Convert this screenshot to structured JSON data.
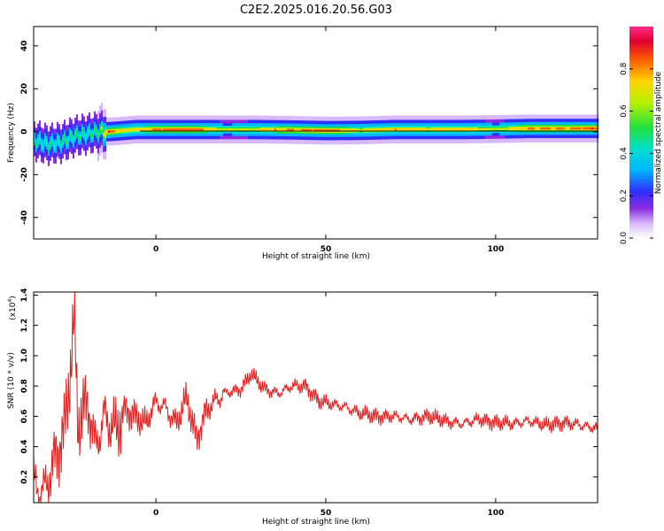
{
  "title": "C2E2.2025.016.20.56.G03",
  "colors": {
    "line": "#e32020",
    "colormap": [
      "#ffffff",
      "#d8b8ff",
      "#8a2be2",
      "#2f2fff",
      "#00c8ff",
      "#00e0a0",
      "#20e040",
      "#ffd400",
      "#ff6000",
      "#e00030",
      "#ff2a8a"
    ]
  },
  "chart_data": [
    {
      "type": "heatmap",
      "xlabel": "Height of straight line (km)",
      "ylabel": "Frequency (Hz)",
      "xlim": [
        -36,
        130
      ],
      "ylim": [
        -50,
        49
      ],
      "xticks": [
        0,
        50,
        100
      ],
      "xtick_labels": [
        "0",
        "50",
        "100"
      ],
      "yticks": [
        -40,
        -20,
        0,
        20,
        40
      ],
      "ytick_labels": [
        "-40",
        "-20",
        "0",
        "20",
        "40"
      ],
      "colorbar": {
        "label": "Normalized spectral amplitude",
        "range": [
          0.0,
          1.0
        ],
        "ticks": [
          0.0,
          0.2,
          0.4,
          0.6,
          0.8
        ],
        "tick_labels": [
          "0.0",
          "0.2",
          "0.4",
          "0.6",
          "0.8"
        ]
      },
      "ridge": {
        "x": [
          -36,
          -32,
          -28,
          -24,
          -20,
          -17,
          -14,
          -10,
          -6,
          0,
          10,
          20,
          30,
          40,
          50,
          60,
          70,
          80,
          90,
          100,
          110,
          120,
          130
        ],
        "freq": [
          -4,
          -6,
          -5,
          -2,
          -1,
          0,
          0,
          0.5,
          1,
          1,
          1,
          1,
          1,
          0.8,
          0.5,
          0.6,
          1,
          1,
          1,
          1.2,
          1.5,
          1.5,
          1.5
        ],
        "amplitude": [
          0.5,
          0.5,
          0.5,
          0.55,
          0.5,
          0.6,
          0.9,
          0.8,
          0.75,
          0.85,
          0.9,
          0.7,
          0.75,
          0.85,
          0.9,
          0.75,
          0.8,
          0.75,
          0.8,
          0.7,
          0.85,
          0.85,
          0.9
        ]
      }
    },
    {
      "type": "line",
      "xlabel": "Height of straight line (km)",
      "ylabel": "SNR (10 * v/v)",
      "scale_label": "(x10",
      "scale_exponent": "4",
      "xlim": [
        -36,
        130
      ],
      "ylim": [
        0.03,
        1.42
      ],
      "xticks": [
        0,
        50,
        100
      ],
      "xtick_labels": [
        "0",
        "50",
        "100"
      ],
      "yticks": [
        0.2,
        0.4,
        0.6,
        0.8,
        1.0,
        1.2,
        1.4
      ],
      "ytick_labels": [
        "0.2",
        "0.4",
        "0.6",
        "0.8",
        "1.0",
        "1.2",
        "1.4"
      ],
      "series": [
        {
          "x": [
            -36,
            -33,
            -30,
            -27,
            -25,
            -24,
            -23,
            -20,
            -18,
            -15,
            -12,
            -9,
            -6,
            -3,
            0,
            3,
            6,
            9,
            12,
            15,
            20,
            25,
            28,
            32,
            36,
            40,
            44,
            48,
            52,
            56,
            60,
            65,
            70,
            75,
            80,
            85,
            90,
            95,
            100,
            105,
            110,
            115,
            120,
            125,
            130
          ],
          "y": [
            0.15,
            0.1,
            0.3,
            0.5,
            0.95,
            1.25,
            0.55,
            0.7,
            0.4,
            0.6,
            0.5,
            0.65,
            0.6,
            0.55,
            0.7,
            0.65,
            0.55,
            0.72,
            0.45,
            0.65,
            0.75,
            0.78,
            0.88,
            0.78,
            0.75,
            0.8,
            0.8,
            0.7,
            0.68,
            0.66,
            0.62,
            0.6,
            0.6,
            0.58,
            0.6,
            0.57,
            0.55,
            0.58,
            0.56,
            0.55,
            0.57,
            0.54,
            0.56,
            0.54,
            0.52
          ]
        }
      ]
    }
  ]
}
